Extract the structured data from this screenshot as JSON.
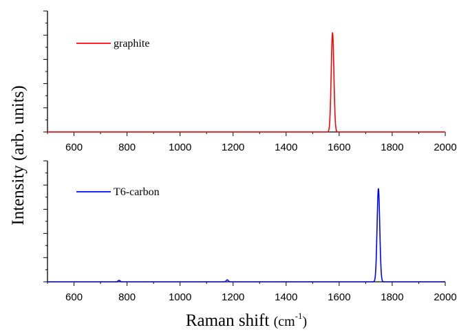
{
  "chart_data": [
    {
      "type": "line",
      "xlim": [
        500,
        2000
      ],
      "x_ticks": [
        600,
        800,
        1000,
        1200,
        1400,
        1600,
        1800,
        2000
      ],
      "x_tick_labels": [
        "600",
        "800",
        "1000",
        "1200",
        "1400",
        "1600",
        "1800",
        "2000"
      ],
      "ylim": [
        0,
        1.0
      ],
      "y_tick_labels": false,
      "grid": false,
      "legend_placement": "top-left",
      "series": [
        {
          "name": "graphite",
          "color": "#ff0000",
          "peaks": [
            {
              "x": 1575,
              "height": 0.82,
              "width": 5
            }
          ]
        }
      ]
    },
    {
      "type": "line",
      "xlim": [
        500,
        2000
      ],
      "x_ticks": [
        600,
        800,
        1000,
        1200,
        1400,
        1600,
        1800,
        2000
      ],
      "x_tick_labels": [
        "600",
        "800",
        "1000",
        "1200",
        "1400",
        "1600",
        "1800",
        "2000"
      ],
      "ylim": [
        0,
        1.0
      ],
      "y_tick_labels": false,
      "grid": false,
      "legend_placement": "top-left",
      "series": [
        {
          "name": "T6-carbon",
          "color": "#0000ff",
          "peaks": [
            {
              "x": 770,
              "height": 0.012,
              "width": 4
            },
            {
              "x": 1178,
              "height": 0.016,
              "width": 4
            },
            {
              "x": 1748,
              "height": 0.77,
              "width": 5
            }
          ]
        }
      ]
    }
  ],
  "ylabel": "Intensity (arb. units)",
  "xlabel_main": "Raman shift ",
  "xlabel_unit": "(cm",
  "xlabel_sup": "-1",
  "xlabel_close": ")"
}
